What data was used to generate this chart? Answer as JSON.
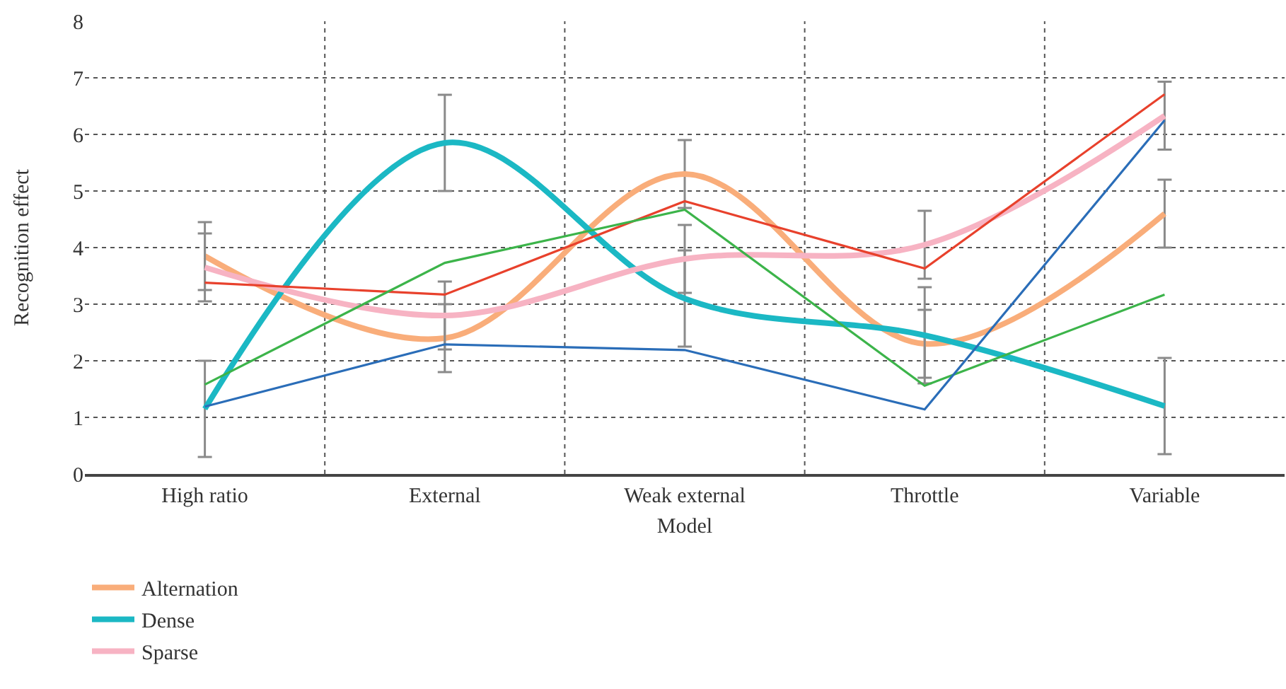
{
  "chart_data": {
    "type": "line",
    "xlabel": "Model",
    "ylabel": "Recognition effect",
    "categories": [
      "High ratio",
      "External",
      "Weak external",
      "Throttle",
      "Variable"
    ],
    "series": [
      {
        "name": "Alternation",
        "color": "#f9ad7a",
        "values": [
          3.85,
          2.4,
          5.3,
          2.3,
          4.6
        ],
        "errors": [
          0.6,
          0.6,
          0.6,
          0.6,
          0.6
        ]
      },
      {
        "name": "Dense",
        "color": "#1bb8c4",
        "values": [
          1.15,
          5.85,
          3.1,
          2.45,
          1.2
        ],
        "errors": [
          0.85,
          0.85,
          0.85,
          0.85,
          0.85
        ]
      },
      {
        "name": "Sparse",
        "color": "#f7b3c3",
        "values": [
          3.65,
          2.8,
          3.8,
          4.05,
          6.33
        ],
        "errors": [
          0.6,
          0.6,
          0.6,
          0.6,
          0.6
        ]
      },
      {
        "color": "#e8412c",
        "values": [
          3.38,
          3.17,
          4.82,
          3.63,
          6.71
        ]
      },
      {
        "color": "#3cb44a",
        "values": [
          1.58,
          3.73,
          4.67,
          1.56,
          3.17
        ]
      },
      {
        "color": "#2a6db8",
        "values": [
          1.19,
          2.29,
          2.19,
          1.14,
          6.25
        ]
      }
    ],
    "ylim": [
      0,
      8
    ],
    "yticks": [
      0,
      1,
      2,
      3,
      4,
      5,
      6,
      7,
      8
    ],
    "grid": true,
    "legend": "bottom left"
  }
}
